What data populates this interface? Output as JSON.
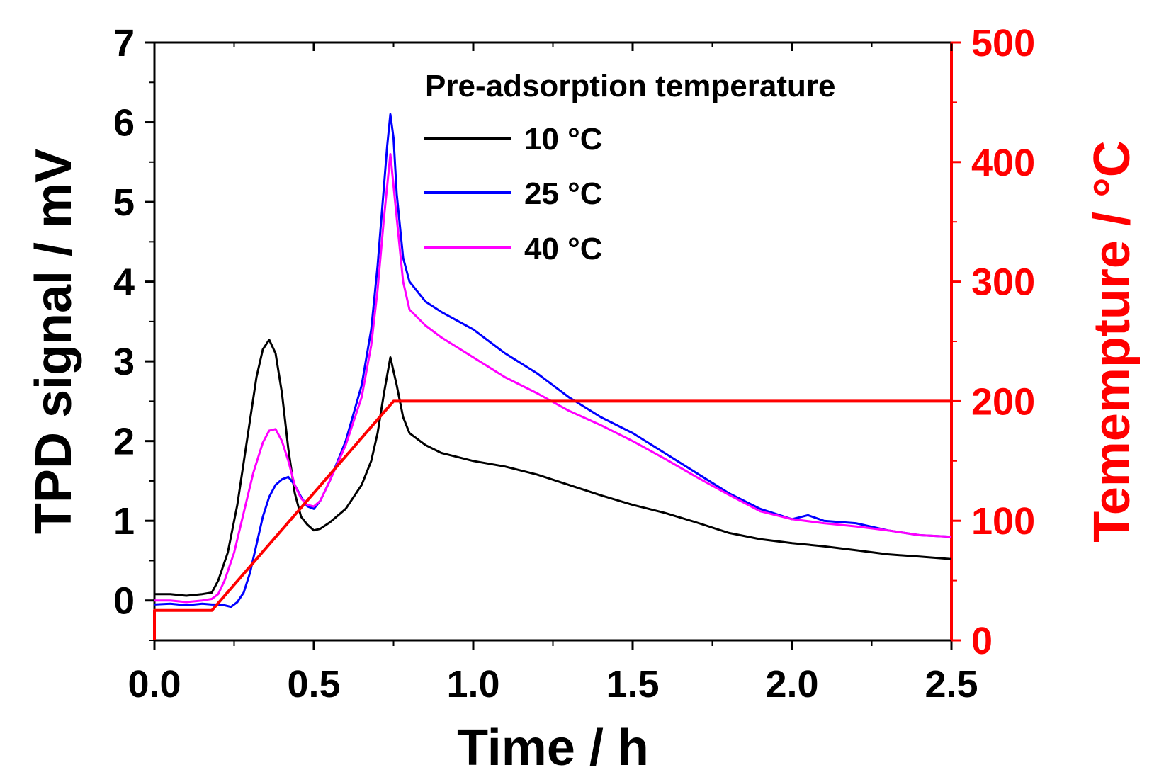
{
  "chart_data": {
    "type": "line",
    "title": "",
    "xlabel": "Time / h",
    "ylabel_left": "TPD signal / mV",
    "ylabel_right": "Temempture / °C",
    "xlim": [
      0,
      2.5
    ],
    "ylim_left": [
      -0.5,
      7
    ],
    "ylim_right": [
      0,
      500
    ],
    "x_ticks": [
      "0.0",
      "0.5",
      "1.0",
      "1.5",
      "2.0",
      "2.5"
    ],
    "y_left_ticks": [
      "0",
      "1",
      "2",
      "3",
      "4",
      "5",
      "6",
      "7"
    ],
    "y_right_ticks": [
      "0",
      "100",
      "200",
      "300",
      "400",
      "500"
    ],
    "legend_title": "Pre-adsorption temperature",
    "legend_position": "top-right",
    "colors": {
      "axis": "#000000",
      "right_axis": "#ff0000",
      "s10": "#000000",
      "s25": "#0000ff",
      "s40": "#ff00ff",
      "temp": "#ff0000"
    },
    "series": [
      {
        "name": "10 °C",
        "axis": "left",
        "color": "#000000",
        "x": [
          0,
          0.05,
          0.1,
          0.15,
          0.18,
          0.2,
          0.23,
          0.26,
          0.29,
          0.32,
          0.34,
          0.36,
          0.38,
          0.4,
          0.42,
          0.44,
          0.46,
          0.48,
          0.5,
          0.52,
          0.55,
          0.6,
          0.65,
          0.68,
          0.7,
          0.72,
          0.74,
          0.76,
          0.78,
          0.8,
          0.85,
          0.9,
          1.0,
          1.1,
          1.2,
          1.3,
          1.4,
          1.5,
          1.6,
          1.7,
          1.8,
          1.9,
          2.0,
          2.1,
          2.2,
          2.3,
          2.4,
          2.5
        ],
        "y": [
          0.08,
          0.08,
          0.06,
          0.08,
          0.1,
          0.25,
          0.6,
          1.2,
          2.0,
          2.8,
          3.15,
          3.27,
          3.1,
          2.6,
          1.9,
          1.35,
          1.05,
          0.95,
          0.88,
          0.9,
          0.98,
          1.15,
          1.45,
          1.75,
          2.1,
          2.6,
          3.05,
          2.7,
          2.3,
          2.1,
          1.95,
          1.85,
          1.75,
          1.68,
          1.58,
          1.45,
          1.32,
          1.2,
          1.1,
          0.98,
          0.85,
          0.77,
          0.72,
          0.68,
          0.63,
          0.58,
          0.55,
          0.52
        ]
      },
      {
        "name": "25 °C",
        "axis": "left",
        "color": "#0000ff",
        "x": [
          0,
          0.05,
          0.1,
          0.15,
          0.18,
          0.2,
          0.22,
          0.24,
          0.26,
          0.28,
          0.3,
          0.32,
          0.34,
          0.36,
          0.38,
          0.4,
          0.42,
          0.44,
          0.46,
          0.48,
          0.5,
          0.52,
          0.55,
          0.6,
          0.65,
          0.68,
          0.7,
          0.72,
          0.73,
          0.74,
          0.75,
          0.76,
          0.78,
          0.8,
          0.85,
          0.9,
          1.0,
          1.1,
          1.2,
          1.3,
          1.4,
          1.5,
          1.6,
          1.7,
          1.8,
          1.9,
          2.0,
          2.05,
          2.1,
          2.2,
          2.3,
          2.4,
          2.5
        ],
        "y": [
          -0.05,
          -0.04,
          -0.06,
          -0.04,
          -0.05,
          -0.05,
          -0.06,
          -0.08,
          -0.02,
          0.1,
          0.35,
          0.7,
          1.05,
          1.3,
          1.45,
          1.52,
          1.55,
          1.45,
          1.3,
          1.18,
          1.15,
          1.25,
          1.5,
          2.0,
          2.7,
          3.4,
          4.2,
          5.2,
          5.7,
          6.1,
          5.8,
          5.1,
          4.3,
          4.0,
          3.75,
          3.62,
          3.4,
          3.1,
          2.85,
          2.55,
          2.3,
          2.1,
          1.85,
          1.6,
          1.35,
          1.15,
          1.02,
          1.07,
          1.0,
          0.97,
          0.88,
          0.82,
          0.8
        ]
      },
      {
        "name": "40 °C",
        "axis": "left",
        "color": "#ff00ff",
        "x": [
          0,
          0.05,
          0.1,
          0.15,
          0.18,
          0.2,
          0.22,
          0.25,
          0.28,
          0.31,
          0.34,
          0.36,
          0.38,
          0.4,
          0.42,
          0.44,
          0.46,
          0.48,
          0.5,
          0.52,
          0.55,
          0.6,
          0.65,
          0.68,
          0.7,
          0.72,
          0.74,
          0.76,
          0.78,
          0.8,
          0.85,
          0.9,
          1.0,
          1.1,
          1.2,
          1.3,
          1.4,
          1.5,
          1.6,
          1.7,
          1.8,
          1.9,
          2.0,
          2.1,
          2.2,
          2.3,
          2.4,
          2.5
        ],
        "y": [
          0.0,
          0.0,
          -0.02,
          0.0,
          0.02,
          0.08,
          0.25,
          0.6,
          1.1,
          1.6,
          1.98,
          2.13,
          2.15,
          2.0,
          1.75,
          1.45,
          1.28,
          1.2,
          1.18,
          1.25,
          1.5,
          1.95,
          2.55,
          3.2,
          3.9,
          4.8,
          5.6,
          4.8,
          4.0,
          3.65,
          3.45,
          3.3,
          3.05,
          2.8,
          2.6,
          2.38,
          2.2,
          2.0,
          1.78,
          1.55,
          1.33,
          1.12,
          1.02,
          0.97,
          0.93,
          0.88,
          0.82,
          0.8
        ]
      },
      {
        "name": "Temperature",
        "axis": "right",
        "color": "#ff0000",
        "x": [
          0,
          0.0,
          0.18,
          0.75,
          2.5
        ],
        "y": [
          0,
          25,
          25,
          200,
          200
        ]
      }
    ]
  }
}
